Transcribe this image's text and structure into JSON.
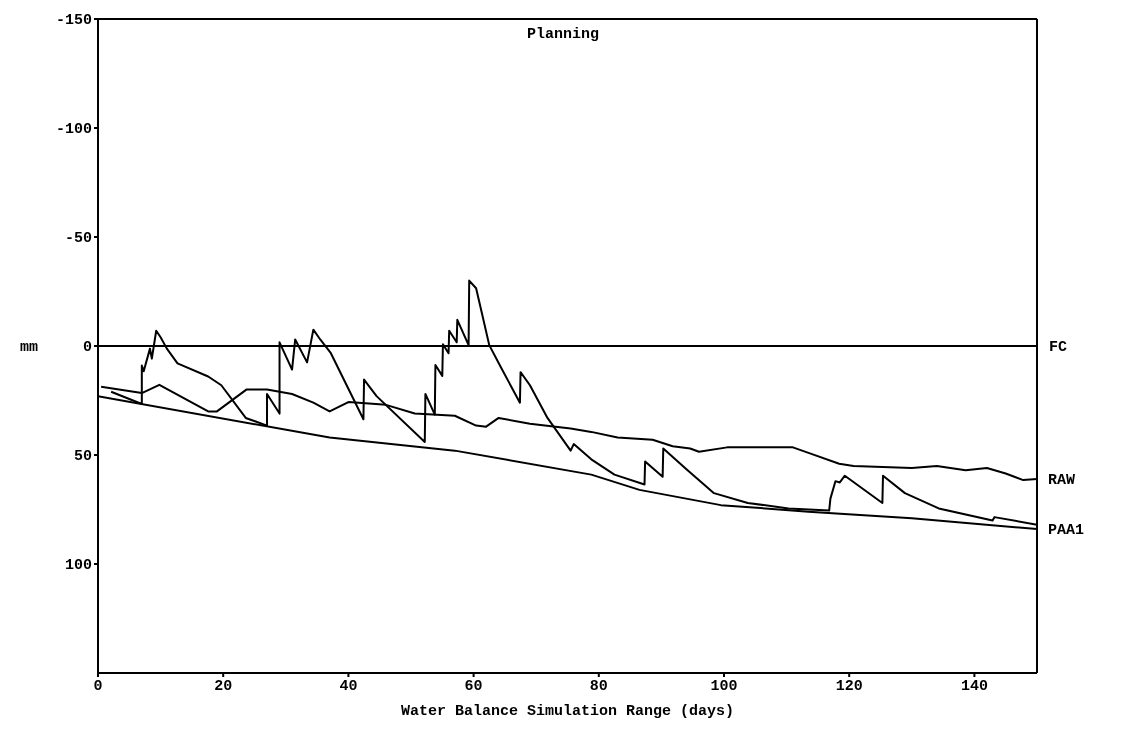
{
  "chart_data": {
    "type": "line",
    "title": "Planning",
    "xlabel": "Water Balance Simulation Range (days)",
    "ylabel": "mm",
    "xlim": [
      0,
      150
    ],
    "xticks": [
      0,
      20,
      40,
      60,
      80,
      100,
      120,
      140
    ],
    "ylim": [
      150,
      -150
    ],
    "yticks": [
      -150,
      -100,
      -50,
      0,
      50,
      100
    ],
    "marker": "none",
    "line_style": "solid",
    "ref_lines": [
      {
        "axis": "y",
        "value": 0,
        "label": "FC",
        "color": "#000000"
      }
    ],
    "series": [
      {
        "name": "RAW",
        "color": "#000000",
        "x": [
          0.5,
          7,
          9.8,
          17.6,
          19,
          23.7,
          27,
          31,
          34.4,
          37,
          40,
          46,
          50.6,
          57,
          60.4,
          62,
          64,
          69,
          75.5,
          78.8,
          83,
          88.6,
          91.8,
          94.6,
          96,
          100.5,
          111,
          113.5,
          118.4,
          120.7,
          130,
          134,
          138.6,
          142,
          145,
          147.8,
          150
        ],
        "values": [
          18.7,
          21.6,
          17.8,
          30,
          30,
          20,
          20,
          22,
          26,
          30,
          25.7,
          27,
          31,
          32,
          36.5,
          37,
          33,
          35.7,
          37.8,
          39.4,
          42,
          43,
          46,
          47,
          48.5,
          46.5,
          46.5,
          49,
          54,
          55,
          56,
          55,
          57,
          56,
          58.5,
          61.5,
          61
        ]
      },
      {
        "name": "PAA1",
        "color": "#000000",
        "x": [
          0,
          37,
          57,
          78.8,
          86.5,
          99.5,
          113.5,
          130,
          150
        ],
        "values": [
          23,
          42,
          48,
          59,
          66,
          73,
          76,
          79,
          84
        ]
      },
      {
        "color": "#000000",
        "x": [
          2.1,
          7,
          7,
          7.3,
          8.3,
          8.6,
          9.3,
          10,
          11,
          12.7,
          17.6,
          19.7,
          23.6,
          27,
          27,
          29,
          29,
          31,
          31.5,
          33.4,
          34.4,
          35.5,
          37.2,
          42.4,
          42.5,
          44.5,
          52.2,
          52.3,
          53.8,
          53.9,
          55,
          55.1,
          56,
          56.1,
          57.3,
          57.4,
          59.2,
          59.3,
          60.4,
          61.3,
          62.5,
          64.4,
          67.4,
          67.5,
          69,
          71.8,
          75.5,
          76,
          78.8,
          82.5,
          87.3,
          87.4,
          90.2,
          90.3,
          94,
          98.4,
          103.8,
          110.3,
          116.8,
          117,
          117.8,
          118.5,
          119.3,
          125.3,
          125.4,
          128.9,
          134.3,
          142.9,
          143.2,
          150
        ],
        "values": [
          21,
          26.6,
          9,
          11.6,
          1.2,
          5.8,
          -7,
          -4,
          1.2,
          8,
          14,
          18,
          33,
          36.5,
          22,
          31,
          -1.7,
          10.8,
          -3,
          7.5,
          -7.5,
          -3,
          3.3,
          33.6,
          15.4,
          23,
          44,
          22,
          31.5,
          8.7,
          13.7,
          -0.8,
          3.3,
          -7,
          -1.7,
          -12,
          -0.4,
          -30,
          -26.5,
          -15.4,
          -0.4,
          10,
          26,
          12,
          18,
          33,
          48,
          45,
          52,
          59,
          63.5,
          53,
          60,
          47,
          56.5,
          67.5,
          72,
          74.5,
          75.5,
          70,
          62,
          62.6,
          59.5,
          72,
          59.5,
          67.5,
          74.5,
          80,
          78.5,
          82
        ]
      }
    ]
  }
}
